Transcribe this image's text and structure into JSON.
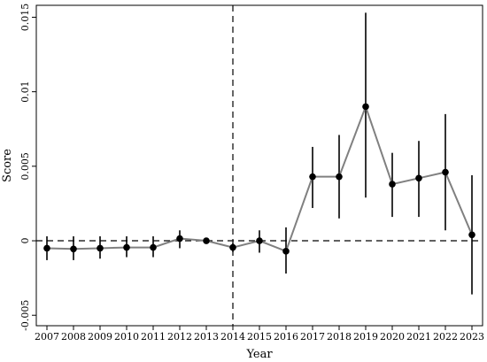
{
  "chart_data": {
    "type": "line",
    "title": "",
    "xlabel": "Year",
    "ylabel": "Score",
    "x": [
      2007,
      2008,
      2009,
      2010,
      2011,
      2012,
      2013,
      2014,
      2015,
      2016,
      2017,
      2018,
      2019,
      2020,
      2021,
      2022,
      2023
    ],
    "x_tick_labels": [
      "2007",
      "2008",
      "2009",
      "2010",
      "2011",
      "2012",
      "2013",
      "2014",
      "2015",
      "2016",
      "2017",
      "2018",
      "2019",
      "2020",
      "2021",
      "2022",
      "2023"
    ],
    "y_ticks": [
      -0.005,
      0,
      0.005,
      0.01,
      0.015
    ],
    "y_tick_labels": [
      "-0.005",
      "0",
      "0.005",
      "0.01",
      "0.015"
    ],
    "ylim": [
      -0.0057,
      0.0158
    ],
    "xlim": [
      2006.6,
      2023.4
    ],
    "series": [
      {
        "values": [
          -0.0005,
          -0.00055,
          -0.0005,
          -0.00045,
          -0.00045,
          0.00015,
          0.0,
          -0.00045,
          0.0,
          -0.0007,
          0.0043,
          0.0043,
          0.009,
          0.0038,
          0.0042,
          0.0046,
          0.0004
        ],
        "ci_low": [
          -0.0013,
          -0.0013,
          -0.0012,
          -0.0011,
          -0.0011,
          -0.0005,
          -5e-05,
          -0.00075,
          -0.0008,
          -0.0022,
          0.0022,
          0.0015,
          0.0029,
          0.0016,
          0.0016,
          0.0007,
          -0.0036
        ],
        "ci_high": [
          0.0003,
          0.0003,
          0.0003,
          0.0003,
          0.0003,
          0.0007,
          5e-05,
          -0.00015,
          0.0007,
          0.0009,
          0.0063,
          0.0071,
          0.0153,
          0.0059,
          0.0067,
          0.0085,
          0.0044
        ]
      }
    ],
    "reference_lines": {
      "horizontal_at_y": 0,
      "vertical_at_x": 2014
    },
    "colors": {
      "line": "#808080",
      "marker": "#000000",
      "error_bar": "#000000",
      "reference": "#000000"
    },
    "grid": false,
    "legend": "none"
  }
}
